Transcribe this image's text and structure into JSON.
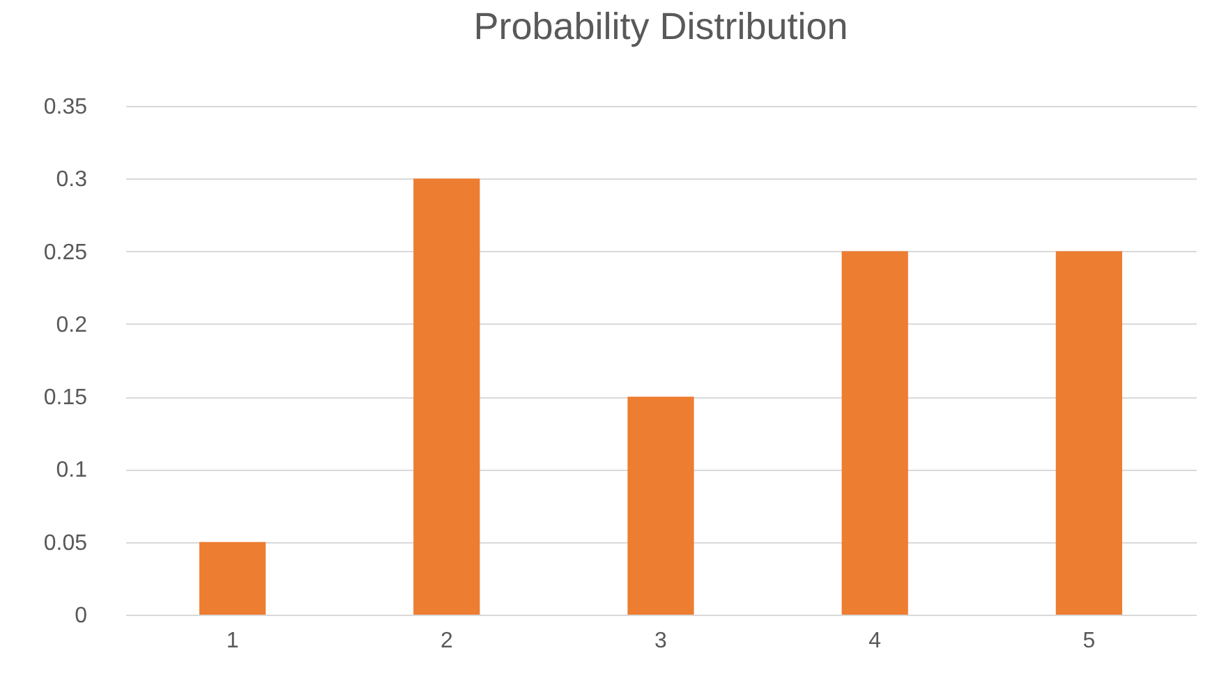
{
  "chart_data": {
    "type": "bar",
    "title": "Probability Distribution",
    "categories": [
      "1",
      "2",
      "3",
      "4",
      "5"
    ],
    "values": [
      0.05,
      0.3,
      0.15,
      0.25,
      0.25
    ],
    "color": "#ed7d31",
    "ylim": [
      0,
      0.35
    ],
    "yticks": [
      0,
      0.05,
      0.1,
      0.15,
      0.2,
      0.25,
      0.3,
      0.35
    ],
    "grid": "y"
  }
}
